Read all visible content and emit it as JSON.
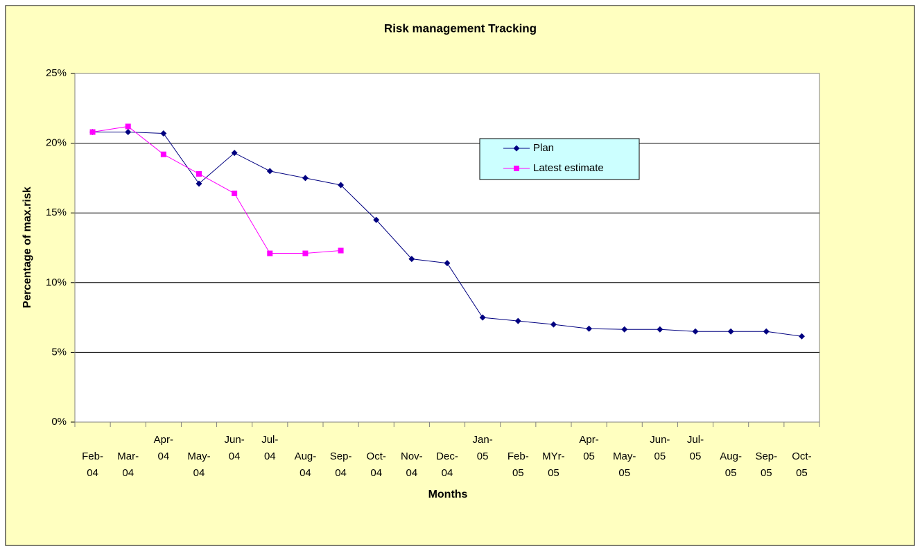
{
  "chart_data": {
    "type": "line",
    "title": "Risk management Tracking",
    "x_label": "Months",
    "y_label": "Percentage of max.risk",
    "categories": [
      "Feb-04",
      "Mar-04",
      "Apr-04",
      "May-04",
      "Jun-04",
      "Jul-04",
      "Aug-04",
      "Sep-04",
      "Oct-04",
      "Nov-04",
      "Dec-04",
      "Jan-05",
      "Feb-05",
      "MYr-05",
      "Apr-05",
      "May-05",
      "Jun-05",
      "Jul-05",
      "Aug-05",
      "Sep-05",
      "Oct-05"
    ],
    "series": [
      {
        "name": "Plan",
        "color": "#000080",
        "marker": "diamond",
        "values": [
          20.8,
          20.8,
          20.7,
          17.1,
          19.3,
          18.0,
          17.5,
          17.0,
          14.5,
          11.7,
          11.4,
          7.5,
          7.25,
          7.0,
          6.7,
          6.65,
          6.65,
          6.5,
          6.5,
          6.5,
          6.15
        ]
      },
      {
        "name": "Latest estimate",
        "color": "#ff00ff",
        "marker": "square",
        "values": [
          20.8,
          21.2,
          19.2,
          17.8,
          16.4,
          12.1,
          12.1,
          12.3,
          null,
          null,
          null,
          null,
          null,
          null,
          null,
          null,
          null,
          null,
          null,
          null,
          null
        ]
      }
    ],
    "ylim": [
      0,
      25
    ],
    "yticks": [
      {
        "value": 0,
        "label": "0%"
      },
      {
        "value": 5,
        "label": "5%"
      },
      {
        "value": 10,
        "label": "10%"
      },
      {
        "value": 15,
        "label": "15%"
      },
      {
        "value": 20,
        "label": "20%"
      },
      {
        "value": 25,
        "label": "25%"
      }
    ],
    "grid": true,
    "legend": "upper-right"
  }
}
